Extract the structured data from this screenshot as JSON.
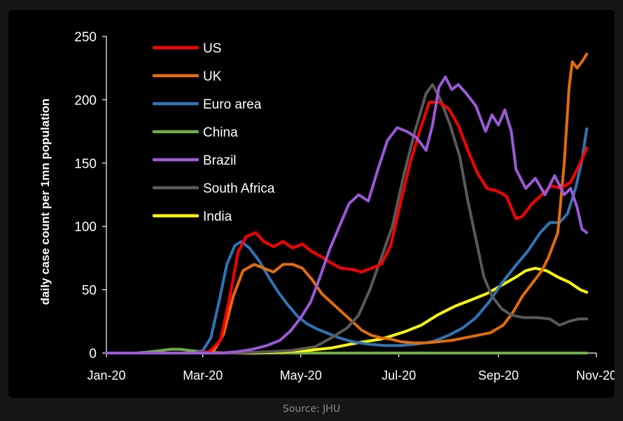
{
  "source": "Source: JHU",
  "chart_data": {
    "type": "line",
    "title": "",
    "ylabel": "daily case count per 1mn population",
    "xlabel": "",
    "x_ticks": [
      "Jan-20",
      "Mar-20",
      "May-20",
      "Jul-20",
      "Sep-20",
      "Nov-20"
    ],
    "y_ticks": [
      0,
      50,
      100,
      150,
      200,
      250
    ],
    "ylim": [
      0,
      250
    ],
    "xlim": [
      "2020-01-01",
      "2020-11-01"
    ],
    "grid": false,
    "legend_position": "top-left",
    "series": [
      {
        "name": "US",
        "color": "#ff0000",
        "points": [
          [
            "2020-01-01",
            0
          ],
          [
            "2020-02-25",
            0
          ],
          [
            "2020-03-05",
            1
          ],
          [
            "2020-03-12",
            10
          ],
          [
            "2020-03-18",
            45
          ],
          [
            "2020-03-23",
            80
          ],
          [
            "2020-03-28",
            92
          ],
          [
            "2020-04-03",
            95
          ],
          [
            "2020-04-08",
            88
          ],
          [
            "2020-04-14",
            84
          ],
          [
            "2020-04-20",
            88
          ],
          [
            "2020-04-26",
            83
          ],
          [
            "2020-05-02",
            86
          ],
          [
            "2020-05-08",
            80
          ],
          [
            "2020-05-14",
            76
          ],
          [
            "2020-05-20",
            71
          ],
          [
            "2020-05-26",
            67
          ],
          [
            "2020-06-02",
            66
          ],
          [
            "2020-06-08",
            64
          ],
          [
            "2020-06-14",
            67
          ],
          [
            "2020-06-20",
            70
          ],
          [
            "2020-06-26",
            85
          ],
          [
            "2020-07-02",
            118
          ],
          [
            "2020-07-08",
            150
          ],
          [
            "2020-07-14",
            175
          ],
          [
            "2020-07-20",
            198
          ],
          [
            "2020-07-26",
            198
          ],
          [
            "2020-08-01",
            193
          ],
          [
            "2020-08-07",
            180
          ],
          [
            "2020-08-13",
            160
          ],
          [
            "2020-08-19",
            142
          ],
          [
            "2020-08-25",
            130
          ],
          [
            "2020-08-31",
            128
          ],
          [
            "2020-09-06",
            124
          ],
          [
            "2020-09-12",
            106
          ],
          [
            "2020-09-16",
            108
          ],
          [
            "2020-09-22",
            118
          ],
          [
            "2020-09-28",
            125
          ],
          [
            "2020-10-04",
            132
          ],
          [
            "2020-10-10",
            130
          ],
          [
            "2020-10-16",
            135
          ],
          [
            "2020-10-22",
            150
          ],
          [
            "2020-10-26",
            162
          ]
        ]
      },
      {
        "name": "UK",
        "color": "#e46c0a",
        "points": [
          [
            "2020-01-01",
            0
          ],
          [
            "2020-03-01",
            0
          ],
          [
            "2020-03-08",
            2
          ],
          [
            "2020-03-14",
            15
          ],
          [
            "2020-03-20",
            45
          ],
          [
            "2020-03-26",
            65
          ],
          [
            "2020-04-02",
            70
          ],
          [
            "2020-04-08",
            67
          ],
          [
            "2020-04-14",
            64
          ],
          [
            "2020-04-20",
            70
          ],
          [
            "2020-04-26",
            70
          ],
          [
            "2020-05-02",
            67
          ],
          [
            "2020-05-08",
            58
          ],
          [
            "2020-05-14",
            47
          ],
          [
            "2020-05-20",
            40
          ],
          [
            "2020-05-26",
            33
          ],
          [
            "2020-06-02",
            25
          ],
          [
            "2020-06-08",
            18
          ],
          [
            "2020-06-14",
            14
          ],
          [
            "2020-06-20",
            12
          ],
          [
            "2020-06-26",
            11
          ],
          [
            "2020-07-02",
            9
          ],
          [
            "2020-07-10",
            8
          ],
          [
            "2020-07-18",
            8
          ],
          [
            "2020-07-26",
            9
          ],
          [
            "2020-08-03",
            10
          ],
          [
            "2020-08-11",
            12
          ],
          [
            "2020-08-19",
            14
          ],
          [
            "2020-08-27",
            16
          ],
          [
            "2020-09-04",
            22
          ],
          [
            "2020-09-10",
            32
          ],
          [
            "2020-09-16",
            45
          ],
          [
            "2020-09-22",
            55
          ],
          [
            "2020-09-28",
            65
          ],
          [
            "2020-10-02",
            75
          ],
          [
            "2020-10-08",
            95
          ],
          [
            "2020-10-12",
            150
          ],
          [
            "2020-10-15",
            210
          ],
          [
            "2020-10-17",
            230
          ],
          [
            "2020-10-20",
            225
          ],
          [
            "2020-10-23",
            230
          ],
          [
            "2020-10-26",
            236
          ]
        ]
      },
      {
        "name": "Euro area",
        "color": "#2e75b6",
        "points": [
          [
            "2020-01-01",
            0
          ],
          [
            "2020-02-25",
            0
          ],
          [
            "2020-03-01",
            2
          ],
          [
            "2020-03-06",
            12
          ],
          [
            "2020-03-11",
            40
          ],
          [
            "2020-03-16",
            70
          ],
          [
            "2020-03-21",
            85
          ],
          [
            "2020-03-25",
            88
          ],
          [
            "2020-03-30",
            83
          ],
          [
            "2020-04-05",
            73
          ],
          [
            "2020-04-11",
            60
          ],
          [
            "2020-04-17",
            48
          ],
          [
            "2020-04-23",
            38
          ],
          [
            "2020-04-29",
            29
          ],
          [
            "2020-05-05",
            23
          ],
          [
            "2020-05-11",
            19
          ],
          [
            "2020-05-17",
            16
          ],
          [
            "2020-05-25",
            12
          ],
          [
            "2020-06-02",
            9
          ],
          [
            "2020-06-12",
            7
          ],
          [
            "2020-06-22",
            6
          ],
          [
            "2020-07-02",
            6
          ],
          [
            "2020-07-12",
            7
          ],
          [
            "2020-07-22",
            9
          ],
          [
            "2020-08-01",
            14
          ],
          [
            "2020-08-10",
            20
          ],
          [
            "2020-08-18",
            28
          ],
          [
            "2020-08-26",
            40
          ],
          [
            "2020-09-03",
            55
          ],
          [
            "2020-09-11",
            68
          ],
          [
            "2020-09-19",
            80
          ],
          [
            "2020-09-27",
            95
          ],
          [
            "2020-10-03",
            103
          ],
          [
            "2020-10-09",
            103
          ],
          [
            "2020-10-14",
            110
          ],
          [
            "2020-10-19",
            130
          ],
          [
            "2020-10-23",
            152
          ],
          [
            "2020-10-26",
            177
          ]
        ]
      },
      {
        "name": "China",
        "color": "#70ad47",
        "points": [
          [
            "2020-01-01",
            0
          ],
          [
            "2020-01-20",
            0
          ],
          [
            "2020-01-28",
            1
          ],
          [
            "2020-02-04",
            2
          ],
          [
            "2020-02-10",
            3
          ],
          [
            "2020-02-16",
            3
          ],
          [
            "2020-02-22",
            2
          ],
          [
            "2020-03-01",
            1
          ],
          [
            "2020-03-15",
            0
          ],
          [
            "2020-10-26",
            0
          ]
        ]
      },
      {
        "name": "Brazil",
        "color": "#9b59d6",
        "points": [
          [
            "2020-01-01",
            0
          ],
          [
            "2020-03-12",
            0
          ],
          [
            "2020-03-22",
            1
          ],
          [
            "2020-04-01",
            3
          ],
          [
            "2020-04-10",
            6
          ],
          [
            "2020-04-18",
            10
          ],
          [
            "2020-04-25",
            18
          ],
          [
            "2020-05-01",
            28
          ],
          [
            "2020-05-07",
            40
          ],
          [
            "2020-05-13",
            60
          ],
          [
            "2020-05-19",
            82
          ],
          [
            "2020-05-25",
            100
          ],
          [
            "2020-05-31",
            118
          ],
          [
            "2020-06-06",
            125
          ],
          [
            "2020-06-12",
            120
          ],
          [
            "2020-06-18",
            145
          ],
          [
            "2020-06-24",
            168
          ],
          [
            "2020-06-30",
            178
          ],
          [
            "2020-07-06",
            175
          ],
          [
            "2020-07-12",
            170
          ],
          [
            "2020-07-18",
            160
          ],
          [
            "2020-07-22",
            180
          ],
          [
            "2020-07-26",
            210
          ],
          [
            "2020-07-30",
            218
          ],
          [
            "2020-08-03",
            208
          ],
          [
            "2020-08-07",
            212
          ],
          [
            "2020-08-12",
            205
          ],
          [
            "2020-08-18",
            195
          ],
          [
            "2020-08-24",
            175
          ],
          [
            "2020-08-28",
            188
          ],
          [
            "2020-09-01",
            180
          ],
          [
            "2020-09-05",
            192
          ],
          [
            "2020-09-09",
            175
          ],
          [
            "2020-09-12",
            145
          ],
          [
            "2020-09-18",
            130
          ],
          [
            "2020-09-24",
            138
          ],
          [
            "2020-09-30",
            125
          ],
          [
            "2020-10-06",
            140
          ],
          [
            "2020-10-12",
            125
          ],
          [
            "2020-10-16",
            130
          ],
          [
            "2020-10-20",
            115
          ],
          [
            "2020-10-23",
            98
          ],
          [
            "2020-10-26",
            95
          ]
        ]
      },
      {
        "name": "South Africa",
        "color": "#595959",
        "points": [
          [
            "2020-01-01",
            0
          ],
          [
            "2020-03-20",
            0
          ],
          [
            "2020-04-10",
            1
          ],
          [
            "2020-04-25",
            2
          ],
          [
            "2020-05-10",
            5
          ],
          [
            "2020-05-20",
            12
          ],
          [
            "2020-05-30",
            20
          ],
          [
            "2020-06-06",
            30
          ],
          [
            "2020-06-13",
            50
          ],
          [
            "2020-06-20",
            75
          ],
          [
            "2020-06-27",
            100
          ],
          [
            "2020-07-04",
            140
          ],
          [
            "2020-07-11",
            175
          ],
          [
            "2020-07-18",
            205
          ],
          [
            "2020-07-22",
            212
          ],
          [
            "2020-07-27",
            200
          ],
          [
            "2020-08-02",
            180
          ],
          [
            "2020-08-08",
            155
          ],
          [
            "2020-08-13",
            120
          ],
          [
            "2020-08-18",
            90
          ],
          [
            "2020-08-23",
            60
          ],
          [
            "2020-08-28",
            45
          ],
          [
            "2020-09-03",
            35
          ],
          [
            "2020-09-09",
            30
          ],
          [
            "2020-09-17",
            28
          ],
          [
            "2020-09-25",
            28
          ],
          [
            "2020-10-03",
            27
          ],
          [
            "2020-10-09",
            22
          ],
          [
            "2020-10-15",
            25
          ],
          [
            "2020-10-21",
            27
          ],
          [
            "2020-10-26",
            27
          ]
        ]
      },
      {
        "name": "India",
        "color": "#ffff00",
        "points": [
          [
            "2020-01-01",
            0
          ],
          [
            "2020-04-01",
            0
          ],
          [
            "2020-04-20",
            1
          ],
          [
            "2020-05-05",
            2
          ],
          [
            "2020-05-20",
            4
          ],
          [
            "2020-06-05",
            8
          ],
          [
            "2020-06-20",
            11
          ],
          [
            "2020-07-05",
            17
          ],
          [
            "2020-07-15",
            22
          ],
          [
            "2020-07-25",
            30
          ],
          [
            "2020-08-05",
            37
          ],
          [
            "2020-08-15",
            42
          ],
          [
            "2020-08-25",
            47
          ],
          [
            "2020-09-05",
            55
          ],
          [
            "2020-09-12",
            60
          ],
          [
            "2020-09-18",
            65
          ],
          [
            "2020-09-24",
            67
          ],
          [
            "2020-10-01",
            65
          ],
          [
            "2020-10-08",
            60
          ],
          [
            "2020-10-15",
            56
          ],
          [
            "2020-10-22",
            50
          ],
          [
            "2020-10-26",
            48
          ]
        ]
      }
    ]
  }
}
